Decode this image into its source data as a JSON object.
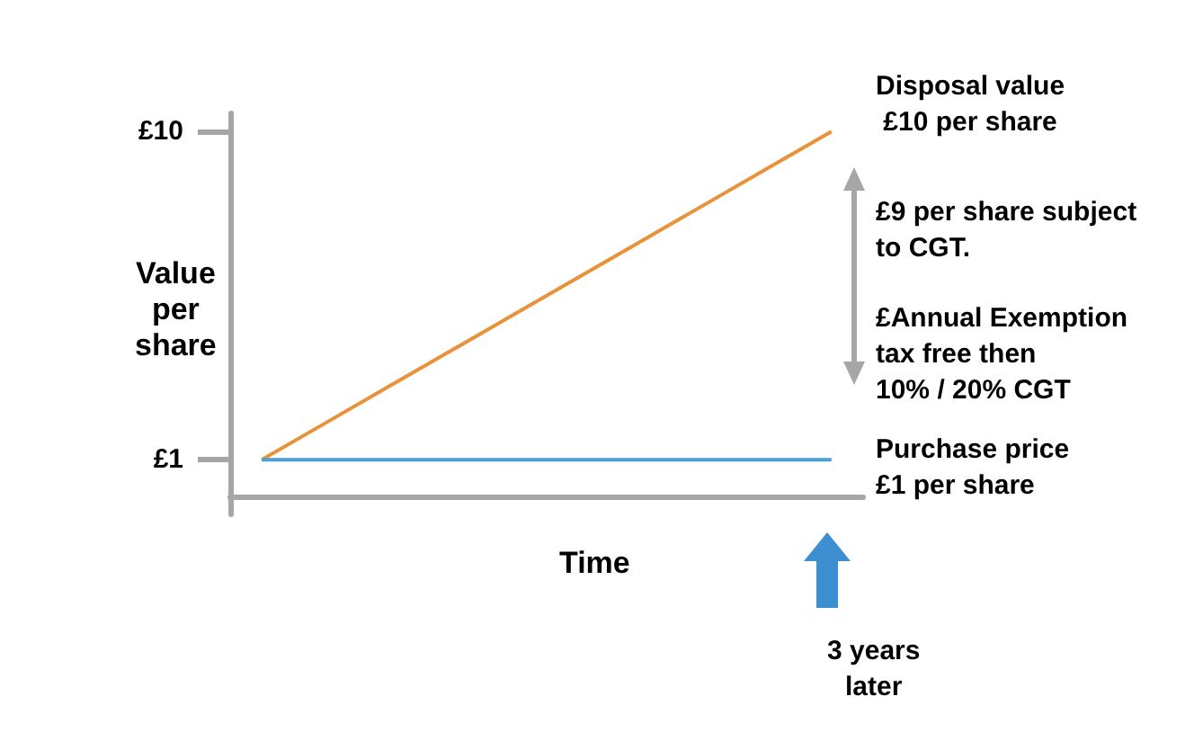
{
  "chart_data": {
    "type": "line",
    "xlabel": "Time",
    "ylabel": "Value\nper\nshare",
    "categories": [
      null,
      null,
      null,
      null,
      null,
      null,
      null,
      null,
      null,
      null
    ],
    "series": [
      {
        "color": "#e8923a",
        "values": [
          1,
          2,
          3,
          4,
          5,
          6,
          7,
          8,
          9,
          10
        ]
      },
      {
        "color": "#4a9fd6",
        "values": [
          1,
          1,
          1,
          1,
          1,
          1,
          1,
          1,
          1,
          1
        ]
      }
    ],
    "ylim": [
      -0.5,
      10.5
    ],
    "yticks": [
      {
        "value": 1,
        "label": "£1"
      },
      {
        "value": 10,
        "label": "£10"
      }
    ],
    "marker": "none",
    "grid": false,
    "tick_labels": "y",
    "annotations": [
      "Disposal value\n £10 per share",
      "£9 per share subject\nto CGT.",
      "£Annual Exemption\ntax free then\n10% / 20% CGT",
      "Purchase price\n£1 per share",
      "3 years\nlater"
    ]
  }
}
